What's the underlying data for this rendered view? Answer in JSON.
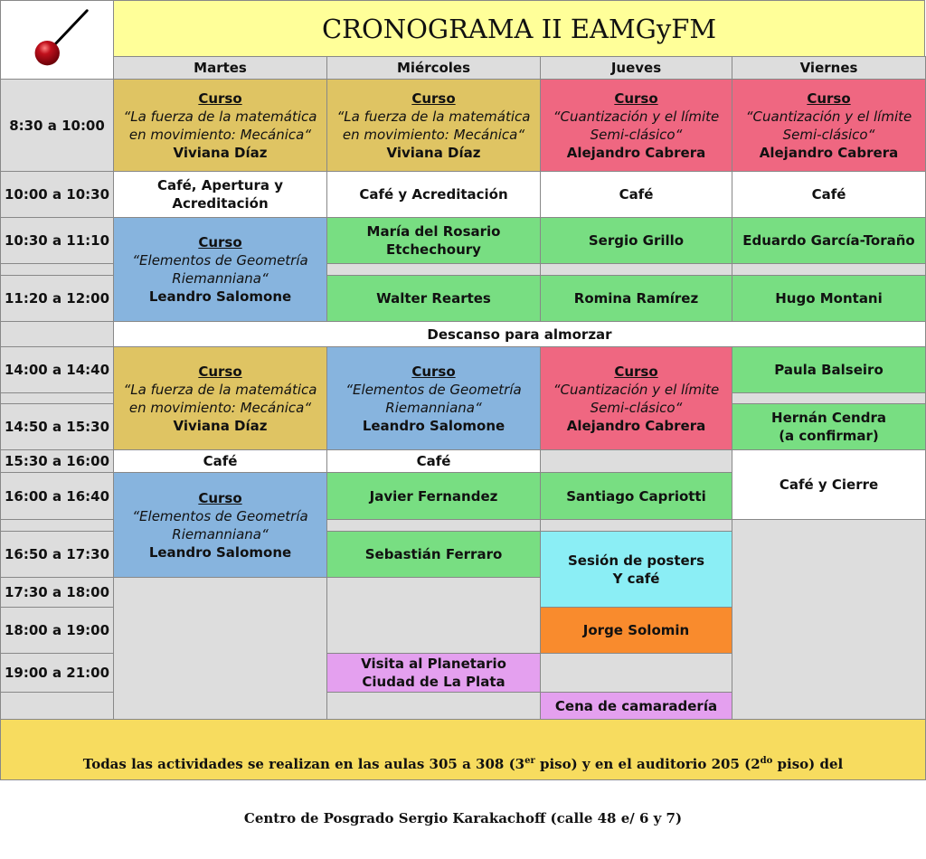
{
  "header": {
    "title": "CRONOGRAMA II EAMGyFM",
    "logo": "pendulum-logo"
  },
  "days": [
    "Martes",
    "Miércoles",
    "Jueves",
    "Viernes"
  ],
  "times": [
    "8:30 a 10:00",
    "10:00 a 10:30",
    "10:30 a 11:10",
    "",
    "11:20 a 12:00",
    "14:00 a 14:40",
    "",
    "14:50 a 15:30",
    "15:30 a 16:00",
    "16:00 a 16:40",
    "",
    "16:50 a 17:30",
    "17:30 a 18:00",
    "18:00 a 19:00",
    "19:00 a 21:00",
    ""
  ],
  "colors": {
    "title": "#ffff99",
    "gray": "#dddddd",
    "white": "#ffffff",
    "gold": "#dfc463",
    "pink": "#ef6781",
    "blue": "#87b4de",
    "green": "#78de82",
    "cyan": "#8beef5",
    "orange": "#f98b2d",
    "violet": "#e4a0ef",
    "footer": "#f7dc5f"
  },
  "sessions": [
    {
      "label": "Curso",
      "title": "“La fuerza de la matemática\nen movimiento: Mecánica“",
      "speaker": "Viviana Díaz"
    },
    {
      "label": "Curso",
      "title": "“La fuerza de la matemática\nen movimiento: Mecánica“",
      "speaker": "Viviana Díaz"
    },
    {
      "label": "Curso",
      "title": "“Cuantización y el límite\nSemi-clásico“",
      "speaker": "Alejandro Cabrera"
    },
    {
      "label": "Curso",
      "title": "“Cuantización y el límite\nSemi-clásico“",
      "speaker": "Alejandro Cabrera"
    },
    {
      "text": "Café, Apertura y\nAcreditación"
    },
    {
      "text": "Café y Acreditación"
    },
    {
      "text": "Café"
    },
    {
      "text": "Café"
    },
    {
      "label": "Curso",
      "title": "“Elementos de Geometría\nRiemanniana“",
      "speaker": "Leandro Salomone"
    },
    {
      "text": "María del Rosario\nEtchechoury"
    },
    {
      "text": "Sergio Grillo"
    },
    {
      "text": "Eduardo García-Toraño"
    },
    {
      "text": ""
    },
    {
      "text": ""
    },
    {
      "text": ""
    },
    {
      "text": "Walter Reartes"
    },
    {
      "text": "Romina Ramírez"
    },
    {
      "text": "Hugo Montani"
    },
    {
      "text": "Descanso para almorzar"
    },
    {
      "label": "Curso",
      "title": "“La fuerza de la matemática\nen movimiento: Mecánica“",
      "speaker": "Viviana Díaz"
    },
    {
      "label": "Curso",
      "title": "“Elementos de Geometría\nRiemanniana“",
      "speaker": "Leandro Salomone"
    },
    {
      "label": "Curso",
      "title": "“Cuantización y el límite\nSemi-clásico“",
      "speaker": "Alejandro Cabrera"
    },
    {
      "text": "Paula Balseiro"
    },
    {
      "text": ""
    },
    {
      "text": "Hernán Cendra\n(a confirmar)"
    },
    {
      "text": "Café"
    },
    {
      "text": "Café"
    },
    {
      "text": ""
    },
    {
      "text": "Café y Cierre"
    },
    {
      "label": "Curso",
      "title": "“Elementos de Geometría\nRiemanniana“",
      "speaker": "Leandro Salomone"
    },
    {
      "text": "Javier Fernandez"
    },
    {
      "text": "Santiago Capriotti"
    },
    {
      "text": ""
    },
    {
      "text": ""
    },
    {
      "text": "Sebastián Ferraro"
    },
    {
      "text": "Sesión de posters\nY café"
    },
    {
      "text": ""
    },
    {
      "text": ""
    },
    {
      "text": "Jorge Solomin"
    },
    {
      "text": "Visita al Planetario\nCiudad de La Plata"
    },
    {
      "text": ""
    },
    {
      "text": ""
    },
    {
      "text": "Cena de camaradería"
    },
    {
      "text": ""
    }
  ],
  "footer": {
    "line1_a": "Todas las actividades se realizan en las aulas 305 a 308 (3",
    "line1_sup1": "er",
    "line1_b": " piso) y en el auditorio 205 (2",
    "line1_sup2": "do",
    "line1_c": " piso) del",
    "line2": "Centro de Posgrado Sergio Karakachoff (calle 48 e/ 6 y 7)"
  }
}
